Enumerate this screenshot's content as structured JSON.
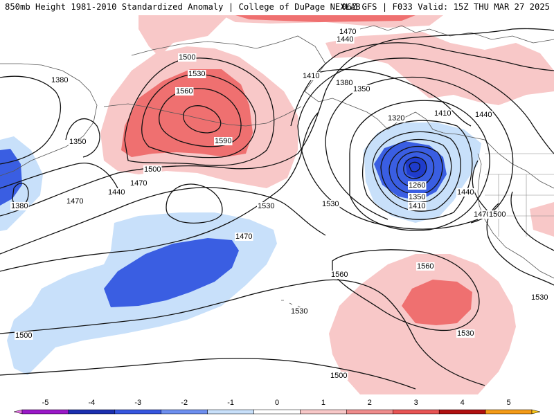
{
  "header": {
    "title_left": "850mb Height 1981-2010 Standardized Anomaly | College of DuPage NEXLAB",
    "title_right": "06Z GFS | F033 Valid: 15Z THU MAR 27 2025"
  },
  "contour_labels": [
    "1470",
    "1440",
    "1500",
    "1530",
    "1560",
    "1590",
    "1500",
    "1470",
    "1440",
    "1380",
    "1350",
    "1380",
    "1470",
    "1410",
    "1380",
    "1350",
    "1320",
    "1410",
    "1440",
    "1440",
    "1470",
    "1500",
    "1260",
    "1350",
    "1410",
    "1530",
    "1530",
    "1470",
    "1530",
    "1560",
    "1560",
    "1530",
    "1530",
    "1500",
    "1500",
    "1530"
  ],
  "colorbar": {
    "ticks": [
      "-5",
      "-4",
      "-3",
      "-2",
      "-1",
      "0",
      "1",
      "2",
      "3",
      "4",
      "5"
    ],
    "colors": [
      "#e070e0",
      "#9a18c8",
      "#1a2fb0",
      "#3656e0",
      "#6d8ff0",
      "#c8e0fa",
      "#ffffff",
      "#f8c8c8",
      "#ef8c8c",
      "#e85454",
      "#b01010",
      "#f49b17",
      "#f7c418"
    ]
  },
  "theme": {
    "land_line": "#555555",
    "contour_line": "#111111",
    "anom_pos_1": "#f8c8c8",
    "anom_pos_2": "#ef7070",
    "anom_neg_1": "#c8e0fa",
    "anom_neg_2": "#3a5ee2",
    "anom_neg_3": "#1f3ccc"
  }
}
